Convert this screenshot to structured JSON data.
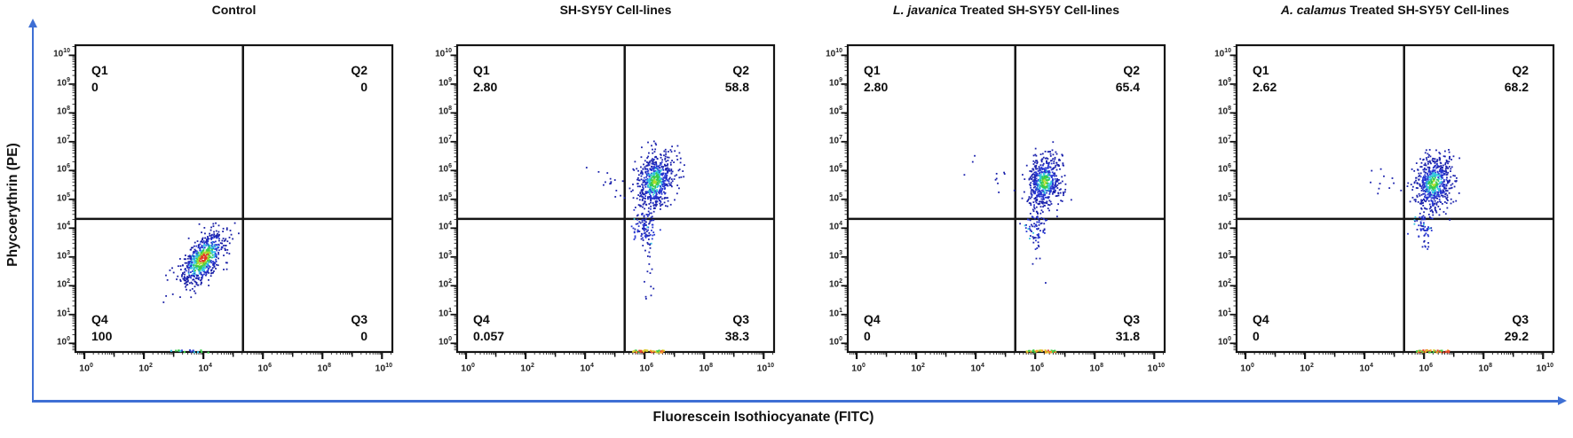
{
  "colors": {
    "axis_arrow": "#3e6fd4",
    "frame": "#141414",
    "text": "#0d0d0d"
  },
  "chart_data": {
    "type": "scatter",
    "xlabel": "Fluorescein Isothiocyanate (FITC)",
    "ylabel": "Phycoerythrin (PE)",
    "x_scale": "log10",
    "y_scale": "log10",
    "x_range_decades": [
      -0.3,
      10.35
    ],
    "y_range_decades": [
      -0.3,
      10.35
    ],
    "x_tick_exponents": [
      0,
      2,
      4,
      6,
      8,
      10
    ],
    "y_tick_exponents": [
      0,
      1,
      2,
      3,
      4,
      5,
      6,
      7,
      8,
      9,
      10
    ],
    "grid": false,
    "quadrant_gates": {
      "x_decade": 5.33,
      "y_decade": 4.32
    },
    "palettes": {
      "control_density": [
        [
          0.34,
          "#e23b24"
        ],
        [
          0.52,
          "#a8d92c"
        ],
        [
          0.78,
          "#3acc4a"
        ],
        [
          1.08,
          "#31c2e8"
        ],
        [
          1.5,
          "#2636d2"
        ],
        [
          9,
          "#191fa6"
        ]
      ],
      "treated_density": [
        [
          0.2,
          "#b2dc2e"
        ],
        [
          0.5,
          "#38cc4b"
        ],
        [
          0.8,
          "#33c6e0"
        ],
        [
          1.35,
          "#2636d2"
        ],
        [
          9,
          "#1b22ad"
        ]
      ],
      "hot": [
        "#3acc4a",
        "#d8d22e",
        "#f59a23",
        "#e8442a"
      ],
      "cool": [
        "#2d3fd4",
        "#31c2e8",
        "#3acc4a"
      ]
    },
    "panels": [
      {
        "title_italic": "",
        "title_rest": "Control",
        "quadrants": {
          "q1": {
            "label": "Q1",
            "value": "0"
          },
          "q2": {
            "label": "Q2",
            "value": "0"
          },
          "q3": {
            "label": "Q3",
            "value": "0"
          },
          "q4": {
            "label": "Q4",
            "value": "100"
          }
        },
        "profile": "control_density",
        "clusters": [
          {
            "cx": 4.0,
            "cy": 2.95,
            "ang": 55,
            "sM": 0.55,
            "sm": 0.27,
            "n": 680
          }
        ],
        "singles": [],
        "clip": {
          "x_max": 5.2,
          "y_max": 4.2
        },
        "floor_smear": {
          "x_from": 2.9,
          "x_to": 4.3,
          "n": 16,
          "palette": "cool"
        }
      },
      {
        "title_italic": "",
        "title_rest": "SH-SY5Y Cell-lines",
        "quadrants": {
          "q1": {
            "label": "Q1",
            "value": "2.80"
          },
          "q2": {
            "label": "Q2",
            "value": "58.8"
          },
          "q3": {
            "label": "Q3",
            "value": "38.3"
          },
          "q4": {
            "label": "Q4",
            "value": "0.057"
          }
        },
        "profile": "treated_density",
        "clusters": [
          {
            "cx": 6.35,
            "cy": 5.62,
            "ang": 78,
            "sM": 0.5,
            "sm": 0.3,
            "n": 640
          },
          {
            "cx": 5.98,
            "cy": 4.0,
            "ang": 90,
            "sM": 0.3,
            "sm": 0.22,
            "n": 85,
            "heat": 0.7
          },
          {
            "cx": 6.1,
            "cy": 3.15,
            "ang": 90,
            "sM": 0.55,
            "sm": 0.12,
            "n": 26
          },
          {
            "cx": 5.0,
            "cy": 5.55,
            "ang": 10,
            "sM": 0.42,
            "sm": 0.32,
            "n": 14
          }
        ],
        "singles": [
          [
            4.05,
            6.1
          ],
          [
            6.3,
            1.9
          ],
          [
            6.05,
            1.55
          ]
        ],
        "clip": null,
        "floor_smear": {
          "x_from": 5.6,
          "x_to": 6.65,
          "n": 42,
          "palette": "hot"
        }
      },
      {
        "title_italic": "L. javanica",
        "title_rest": " Treated SH-SY5Y Cell-lines",
        "quadrants": {
          "q1": {
            "label": "Q1",
            "value": "2.80"
          },
          "q2": {
            "label": "Q2",
            "value": "65.4"
          },
          "q3": {
            "label": "Q3",
            "value": "31.8"
          },
          "q4": {
            "label": "Q4",
            "value": "0"
          }
        },
        "profile": "treated_density",
        "clusters": [
          {
            "cx": 6.32,
            "cy": 5.6,
            "ang": 80,
            "sM": 0.46,
            "sm": 0.28,
            "n": 560
          },
          {
            "cx": 6.0,
            "cy": 4.05,
            "ang": 90,
            "sM": 0.28,
            "sm": 0.2,
            "n": 65,
            "heat": 0.7
          },
          {
            "cx": 6.05,
            "cy": 3.3,
            "ang": 90,
            "sM": 0.35,
            "sm": 0.1,
            "n": 10
          },
          {
            "cx": 4.75,
            "cy": 5.9,
            "ang": 0,
            "sM": 0.45,
            "sm": 0.35,
            "n": 9
          }
        ],
        "singles": [
          [
            3.9,
            6.3
          ],
          [
            3.62,
            5.85
          ],
          [
            6.35,
            2.1
          ]
        ],
        "clip": null,
        "floor_smear": {
          "x_from": 5.7,
          "x_to": 6.7,
          "n": 40,
          "palette": "hot"
        }
      },
      {
        "title_italic": "A. calamus",
        "title_rest": " Treated SH-SY5Y Cell-lines",
        "quadrants": {
          "q1": {
            "label": "Q1",
            "value": "2.62"
          },
          "q2": {
            "label": "Q2",
            "value": "68.2"
          },
          "q3": {
            "label": "Q3",
            "value": "29.2"
          },
          "q4": {
            "label": "Q4",
            "value": "0"
          }
        },
        "profile": "treated_density",
        "clusters": [
          {
            "cx": 6.32,
            "cy": 5.55,
            "ang": 82,
            "sM": 0.48,
            "sm": 0.3,
            "n": 600
          },
          {
            "cx": 6.0,
            "cy": 4.0,
            "ang": 90,
            "sM": 0.3,
            "sm": 0.18,
            "n": 55,
            "heat": 0.7
          },
          {
            "cx": 4.9,
            "cy": 5.5,
            "ang": 0,
            "sM": 0.4,
            "sm": 0.3,
            "n": 9
          }
        ],
        "singles": [
          [
            5.95,
            3.35
          ],
          [
            6.05,
            3.35
          ],
          [
            6.15,
            3.35
          ],
          [
            4.45,
            5.2
          ],
          [
            4.55,
            6.05
          ]
        ],
        "clip": null,
        "floor_smear": {
          "x_from": 5.75,
          "x_to": 6.9,
          "n": 45,
          "palette": "hot"
        }
      }
    ]
  }
}
